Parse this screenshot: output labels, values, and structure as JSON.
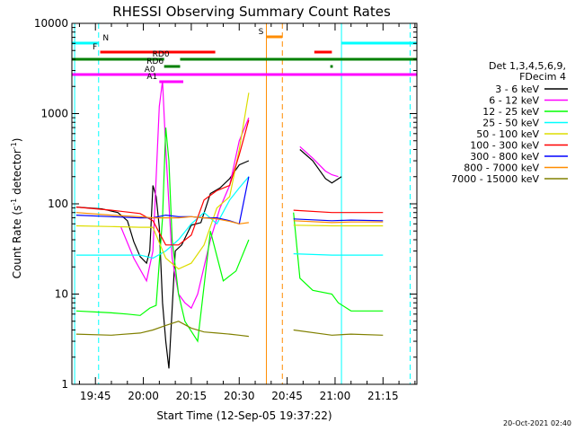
{
  "chart_data": {
    "type": "line",
    "title": "RHESSI Observing Summary Count Rates",
    "xlabel": "Start Time (12-Sep-05 19:37:22)",
    "ylabel_main": "Count Rate (s",
    "ylabel_sup": "-1",
    "ylabel_tail": " detector",
    "ylabel_close": ")",
    "y_scale": "log",
    "ylim": [
      1,
      10000
    ],
    "xlim_minutes": [
      -7.37,
      100.6
    ],
    "x_ticks": [
      {
        "label": "19:45",
        "min": 0
      },
      {
        "label": "20:00",
        "min": 15
      },
      {
        "label": "20:15",
        "min": 30
      },
      {
        "label": "20:30",
        "min": 45
      },
      {
        "label": "20:45",
        "min": 60
      },
      {
        "label": "21:00",
        "min": 75
      },
      {
        "label": "21:15",
        "min": 90
      }
    ],
    "y_ticks": [
      {
        "label": "1",
        "value": 1
      },
      {
        "label": "10",
        "value": 10
      },
      {
        "label": "100",
        "value": 100
      },
      {
        "label": "1000",
        "value": 1000
      },
      {
        "label": "10000",
        "value": 10000
      }
    ],
    "legend_header": [
      "Det 1,3,4,5,6,9,",
      "FDecim 4"
    ],
    "legend_position": "right",
    "series": [
      {
        "name": "3 - 6 keV",
        "color": "#000000",
        "points": [
          [
            -6,
            92
          ],
          [
            2,
            88
          ],
          [
            7,
            80
          ],
          [
            10,
            65
          ],
          [
            12,
            38
          ],
          [
            14,
            26
          ],
          [
            16,
            22
          ],
          [
            17,
            30
          ],
          [
            18,
            160
          ],
          [
            19,
            120
          ],
          [
            20,
            55
          ],
          [
            21,
            8
          ],
          [
            22,
            3
          ],
          [
            23,
            1.5
          ],
          [
            25,
            30
          ],
          [
            27,
            35
          ],
          [
            30,
            58
          ],
          [
            33,
            62
          ],
          [
            36,
            130
          ],
          [
            39,
            150
          ],
          [
            42,
            190
          ],
          [
            45,
            270
          ],
          [
            48,
            300
          ],
          [
            58,
            "gap"
          ],
          [
            64,
            400
          ],
          [
            68,
            300
          ],
          [
            72,
            190
          ],
          [
            74,
            170
          ],
          [
            77,
            200
          ]
        ]
      },
      {
        "name": "6 - 12 keV",
        "color": "#ff00ff",
        "points": [
          [
            -6,
            null
          ],
          [
            2,
            null
          ],
          [
            8,
            55
          ],
          [
            12,
            25
          ],
          [
            16,
            14
          ],
          [
            18,
            30
          ],
          [
            20,
            1200
          ],
          [
            21,
            2300
          ],
          [
            22,
            400
          ],
          [
            23,
            100
          ],
          [
            24,
            25
          ],
          [
            26,
            10
          ],
          [
            28,
            8
          ],
          [
            30,
            7
          ],
          [
            32,
            10
          ],
          [
            34,
            20
          ],
          [
            36,
            40
          ],
          [
            39,
            90
          ],
          [
            42,
            160
          ],
          [
            45,
            500
          ],
          [
            48,
            900
          ],
          [
            58,
            "gap"
          ],
          [
            64,
            430
          ],
          [
            68,
            320
          ],
          [
            72,
            230
          ],
          [
            74,
            210
          ],
          [
            76,
            200
          ]
        ]
      },
      {
        "name": "12 - 25 keV",
        "color": "#00ff00",
        "points": [
          [
            -6,
            6.5
          ],
          [
            5,
            6.2
          ],
          [
            10,
            6
          ],
          [
            14,
            5.8
          ],
          [
            17,
            7
          ],
          [
            19,
            7.5
          ],
          [
            21,
            70
          ],
          [
            22,
            700
          ],
          [
            23,
            300
          ],
          [
            24,
            40
          ],
          [
            26,
            10
          ],
          [
            28,
            5
          ],
          [
            32,
            3
          ],
          [
            36,
            50
          ],
          [
            40,
            14
          ],
          [
            44,
            18
          ],
          [
            48,
            40
          ],
          [
            58,
            "gap"
          ],
          [
            62,
            80
          ],
          [
            64,
            15
          ],
          [
            68,
            11
          ],
          [
            74,
            10
          ],
          [
            76,
            8
          ],
          [
            80,
            6.5
          ],
          [
            90,
            6.5
          ]
        ]
      },
      {
        "name": "25 - 50 keV",
        "color": "#00ffff",
        "points": [
          [
            -6,
            27
          ],
          [
            5,
            27
          ],
          [
            14,
            27
          ],
          [
            18,
            25
          ],
          [
            22,
            30
          ],
          [
            26,
            40
          ],
          [
            30,
            60
          ],
          [
            34,
            80
          ],
          [
            38,
            60
          ],
          [
            42,
            110
          ],
          [
            45,
            150
          ],
          [
            48,
            200
          ],
          [
            58,
            "gap"
          ],
          [
            62,
            28
          ],
          [
            74,
            27
          ],
          [
            80,
            27
          ],
          [
            90,
            27
          ]
        ]
      },
      {
        "name": "50 - 100 keV",
        "color": "#dddd00",
        "points": [
          [
            -6,
            57
          ],
          [
            5,
            56
          ],
          [
            14,
            55
          ],
          [
            18,
            55
          ],
          [
            22,
            25
          ],
          [
            26,
            19
          ],
          [
            30,
            22
          ],
          [
            34,
            35
          ],
          [
            38,
            90
          ],
          [
            42,
            120
          ],
          [
            45,
            400
          ],
          [
            48,
            1700
          ],
          [
            58,
            "gap"
          ],
          [
            62,
            58
          ],
          [
            74,
            57
          ],
          [
            80,
            57
          ],
          [
            90,
            57
          ]
        ]
      },
      {
        "name": "100 - 300 keV",
        "color": "#ff0000",
        "points": [
          [
            -6,
            92
          ],
          [
            5,
            85
          ],
          [
            14,
            78
          ],
          [
            18,
            65
          ],
          [
            22,
            35
          ],
          [
            26,
            35
          ],
          [
            30,
            45
          ],
          [
            34,
            110
          ],
          [
            38,
            140
          ],
          [
            42,
            160
          ],
          [
            45,
            350
          ],
          [
            48,
            850
          ],
          [
            58,
            "gap"
          ],
          [
            62,
            85
          ],
          [
            74,
            80
          ],
          [
            80,
            80
          ],
          [
            90,
            80
          ]
        ]
      },
      {
        "name": "300 - 800 keV",
        "color": "#0000ff",
        "points": [
          [
            -6,
            75
          ],
          [
            5,
            72
          ],
          [
            14,
            70
          ],
          [
            18,
            70
          ],
          [
            22,
            75
          ],
          [
            26,
            72
          ],
          [
            30,
            72
          ],
          [
            34,
            70
          ],
          [
            38,
            70
          ],
          [
            42,
            65
          ],
          [
            45,
            60
          ],
          [
            48,
            200
          ],
          [
            58,
            "gap"
          ],
          [
            62,
            68
          ],
          [
            74,
            65
          ],
          [
            80,
            66
          ],
          [
            90,
            65
          ]
        ]
      },
      {
        "name": "800 - 7000 keV",
        "color": "#ff8c00",
        "points": [
          [
            -6,
            80
          ],
          [
            5,
            75
          ],
          [
            14,
            72
          ],
          [
            18,
            70
          ],
          [
            22,
            70
          ],
          [
            26,
            70
          ],
          [
            30,
            72
          ],
          [
            34,
            70
          ],
          [
            38,
            68
          ],
          [
            42,
            64
          ],
          [
            45,
            60
          ],
          [
            48,
            62
          ],
          [
            58,
            "gap"
          ],
          [
            62,
            65
          ],
          [
            74,
            62
          ],
          [
            80,
            63
          ],
          [
            90,
            63
          ]
        ]
      },
      {
        "name": "7000 - 15000 keV",
        "color": "#808000",
        "points": [
          [
            -6,
            3.6
          ],
          [
            5,
            3.5
          ],
          [
            14,
            3.7
          ],
          [
            18,
            4.0
          ],
          [
            22,
            4.5
          ],
          [
            26,
            5.0
          ],
          [
            30,
            4.2
          ],
          [
            34,
            3.8
          ],
          [
            38,
            3.7
          ],
          [
            42,
            3.6
          ],
          [
            45,
            3.5
          ],
          [
            48,
            3.4
          ],
          [
            58,
            "gap"
          ],
          [
            62,
            4.0
          ],
          [
            74,
            3.5
          ],
          [
            80,
            3.6
          ],
          [
            90,
            3.5
          ]
        ]
      }
    ],
    "state_bars": [
      {
        "label": "N",
        "color": "#00ffff",
        "segments": [
          [
            -7.37,
            1
          ],
          [
            77,
            100.6
          ]
        ]
      },
      {
        "label": "S",
        "color": "#ff8c00",
        "segments": [
          [
            53.5,
            58.5
          ]
        ]
      },
      {
        "label": "F",
        "color": "#ff0000",
        "segments": [
          [
            1.5,
            37.5
          ],
          [
            68.5,
            74
          ]
        ]
      },
      {
        "label": "RD0",
        "color": "#008000",
        "segments": [
          [
            -7.37,
            21.5
          ],
          [
            26.5,
            100.6
          ]
        ]
      },
      {
        "label": "RD6",
        "color": "#008000",
        "segments": [
          [
            21.5,
            26.5
          ],
          [
            73.5,
            74.3
          ]
        ]
      },
      {
        "label": "A0",
        "color": "#ff00ff",
        "segments": [
          [
            -7.37,
            100.6
          ]
        ]
      },
      {
        "label": "A1",
        "color": "#ff00ff",
        "segments": [
          [
            20,
            27.5
          ]
        ]
      }
    ],
    "vertical_lines": [
      {
        "color": "#00ffff",
        "style": "solid",
        "min": -6.5
      },
      {
        "color": "#00ffff",
        "style": "dashed",
        "min": 1
      },
      {
        "color": "#00ffff",
        "style": "solid",
        "min": 77
      },
      {
        "color": "#00ffff",
        "style": "dashed",
        "min": 98.5
      },
      {
        "color": "#ff8c00",
        "style": "solid",
        "min": 53.5
      },
      {
        "color": "#ff8c00",
        "style": "dashed",
        "min": 58.5
      }
    ]
  },
  "footer": {
    "timestamp": "20-Oct-2021 02:40"
  }
}
